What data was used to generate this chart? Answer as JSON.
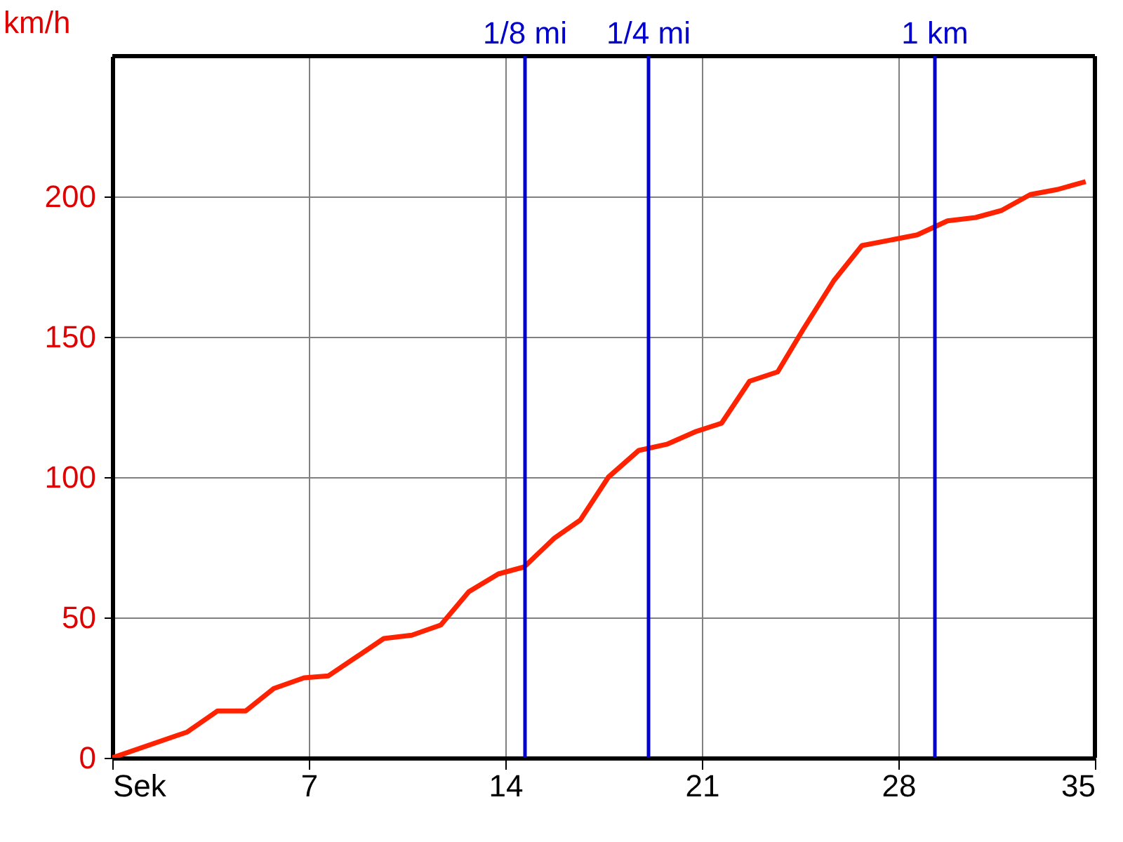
{
  "chart_data": {
    "type": "line",
    "ylabel": "km/h",
    "x": [
      0,
      2.67,
      3.75,
      4.75,
      5.75,
      6.83,
      7.7,
      9.67,
      10.67,
      11.7,
      12.7,
      13.75,
      14.67,
      15.75,
      16.67,
      17.67,
      18.75,
      19.75,
      20.8,
      21.7,
      22.7,
      23.7,
      24.6,
      25.7,
      26.7,
      28.67,
      29.75,
      30.75,
      31.67,
      32.7,
      33.67,
      34.67
    ],
    "series": [
      {
        "color": "#ff2200",
        "values": [
          0,
          9.2,
          16.7,
          16.7,
          24.7,
          28.5,
          29.2,
          42.5,
          43.7,
          47.3,
          59.2,
          65.5,
          68,
          78.3,
          84.7,
          100,
          109.5,
          111.7,
          116.3,
          119.2,
          134.2,
          137.5,
          152.5,
          170,
          182.5,
          186.3,
          191.3,
          192.5,
          195,
          200.7,
          202.5,
          205.3
        ]
      }
    ],
    "xlim": [
      0,
      35
    ],
    "xticks": [
      {
        "value": 0,
        "label": "Sek"
      },
      7,
      14,
      21,
      28,
      35
    ],
    "ylim": [
      0,
      250
    ],
    "yticks": [
      0,
      50,
      100,
      150,
      200
    ],
    "ref_lines": [
      {
        "axis": "x",
        "value": 14.7,
        "label": "1/8 mi",
        "color": "#0000cc"
      },
      {
        "axis": "x",
        "value": 19.1,
        "label": "1/4 mi",
        "color": "#0000cc"
      },
      {
        "axis": "x",
        "value": 29.3,
        "label": "1 km",
        "color": "#0000cc"
      }
    ],
    "grid": true,
    "marker": "none",
    "line_style": "solid"
  }
}
